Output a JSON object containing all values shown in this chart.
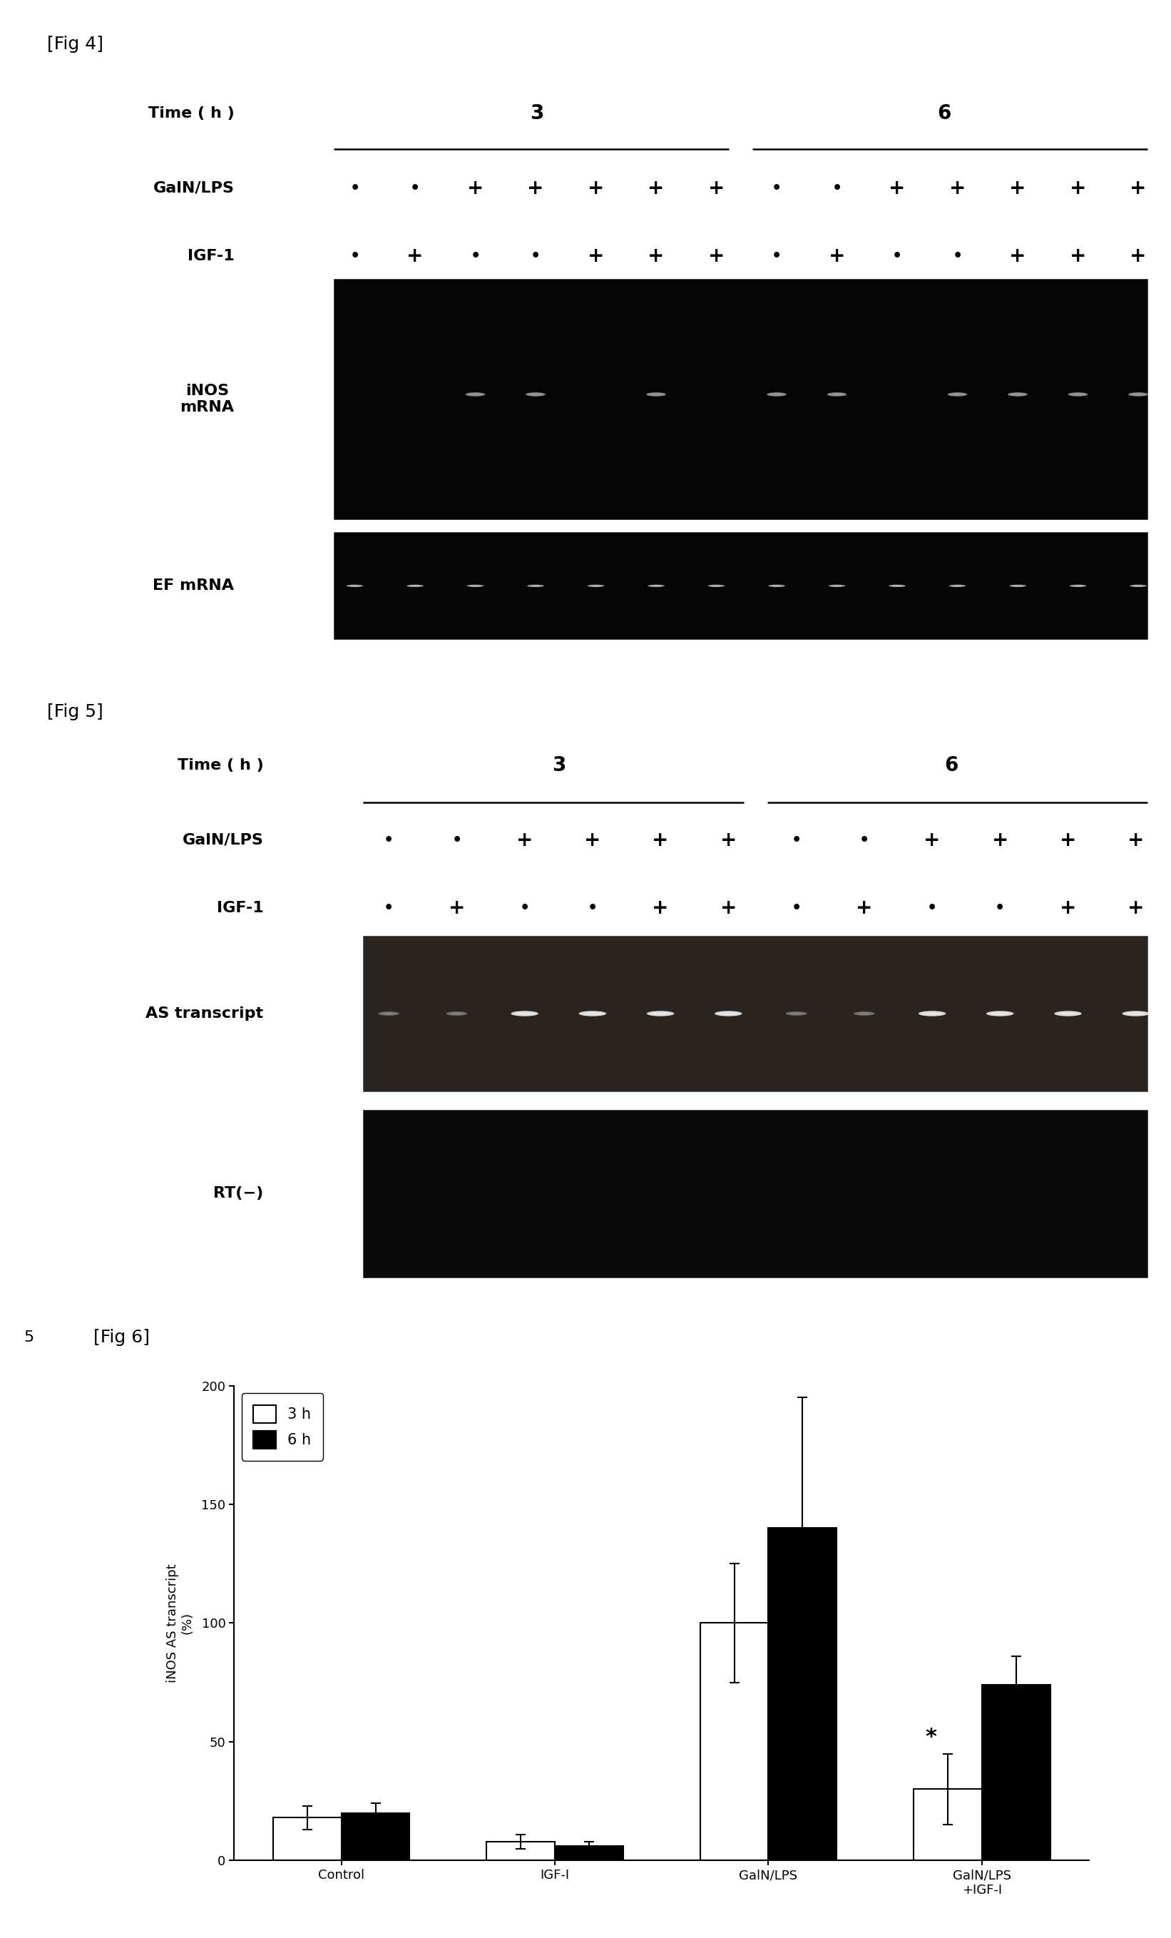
{
  "fig4_label": "[Fig 4]",
  "fig5_label": "[Fig 5]",
  "fig6_label": "[Fig 6]",
  "fig6_number": "5",
  "fig4_time_label": "Time ( h )",
  "fig4_time_3": "3",
  "fig4_time_6": "6",
  "fig4_galn_label": "GalN/LPS",
  "fig4_igf_label": "IGF-1",
  "fig4_galn_signs": [
    "•",
    "•",
    "+",
    "+",
    "+",
    "+",
    "+",
    "•",
    "•",
    "+",
    "+",
    "+",
    "+",
    "+"
  ],
  "fig4_igf_signs": [
    "•",
    "+",
    "•",
    "•",
    "+",
    "+",
    "+",
    "•",
    "+",
    "•",
    "•",
    "+",
    "+",
    "+"
  ],
  "fig4_inos_label": "iNOS\nmRNA",
  "fig4_ef_label": "EF mRNA",
  "fig4_inos_bright": [
    2,
    3,
    5,
    7,
    8,
    10,
    11,
    12,
    13
  ],
  "fig4_ef_all": true,
  "fig5_time_label": "Time ( h )",
  "fig5_time_3": "3",
  "fig5_time_6": "6",
  "fig5_galn_label": "GalN/LPS",
  "fig5_igf_label": "IGF-1",
  "fig5_galn_signs": [
    "•",
    "•",
    "+",
    "+",
    "+",
    "+",
    "•",
    "•",
    "+",
    "+",
    "+",
    "+"
  ],
  "fig5_igf_signs": [
    "•",
    "+",
    "•",
    "•",
    "+",
    "+",
    "•",
    "+",
    "•",
    "•",
    "+",
    "+"
  ],
  "fig5_as_label": "AS transcript",
  "fig5_rt_label": "RT(−)",
  "fig5_as_bright": [
    2,
    3,
    4,
    5,
    8,
    9,
    10,
    11
  ],
  "fig5_as_medium": [
    0,
    1,
    6,
    7
  ],
  "bar_categories": [
    "Control",
    "IGF-I",
    "GalN/LPS",
    "GalN/LPS\n+IGF-I"
  ],
  "bar_3h": [
    18,
    8,
    100,
    30
  ],
  "bar_6h": [
    20,
    6,
    140,
    74
  ],
  "err_3h": [
    5,
    3,
    25,
    15
  ],
  "err_6h": [
    4,
    2,
    55,
    12
  ],
  "bar_color_3h": "#ffffff",
  "bar_color_6h": "#000000",
  "bar_edge_color": "#000000",
  "ylabel": "iNOS AS transcript\n(%)",
  "ylim": [
    0,
    200
  ],
  "yticks": [
    0,
    50,
    100,
    150,
    200
  ],
  "star_annotation": "*",
  "page_bg": "#ffffff"
}
